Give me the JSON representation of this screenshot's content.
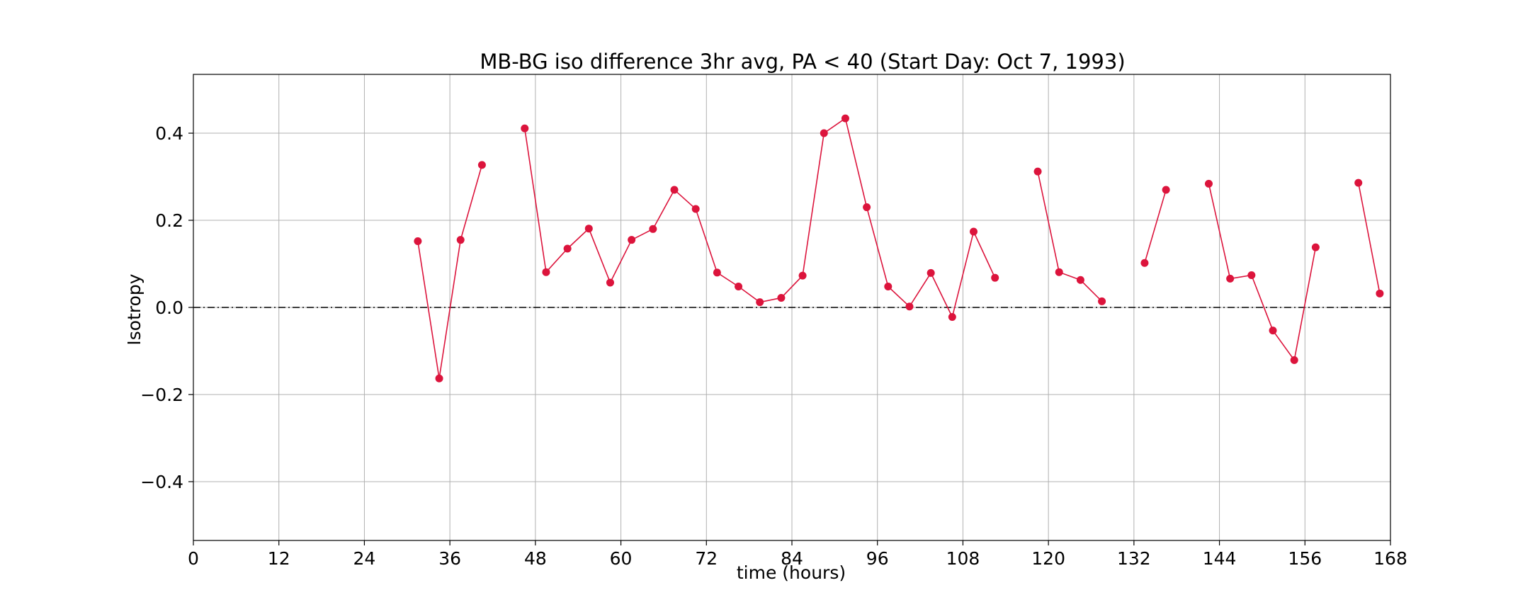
{
  "chart_data": {
    "type": "line",
    "title": "MB-BG iso difference 3hr avg, PA < 40 (Start Day: Oct 7, 1993)",
    "xlabel": "time (hours)",
    "ylabel": "Isotropy",
    "xlim": [
      0,
      168
    ],
    "ylim": [
      -0.535,
      0.535
    ],
    "x_ticks": [
      0,
      12,
      24,
      36,
      48,
      60,
      72,
      84,
      96,
      108,
      120,
      132,
      144,
      156,
      168
    ],
    "y_ticks": [
      -0.4,
      -0.2,
      0.0,
      0.2,
      0.4
    ],
    "x_tick_labels": [
      "0",
      "12",
      "24",
      "36",
      "48",
      "60",
      "72",
      "84",
      "96",
      "108",
      "120",
      "132",
      "144",
      "156",
      "168"
    ],
    "y_tick_labels": [
      "−0.4",
      "−0.2",
      "0.0",
      "0.2",
      "0.4"
    ],
    "grid": true,
    "reference_line": {
      "y": 0.0,
      "style": "dash-dot",
      "color": "#000000"
    },
    "series": [
      {
        "color": "#dc143c",
        "marker": "circle",
        "segments": [
          [
            [
              31.5,
              0.152
            ],
            [
              34.5,
              -0.163
            ],
            [
              37.5,
              0.155
            ],
            [
              40.5,
              0.327
            ]
          ],
          [
            [
              46.5,
              0.411
            ],
            [
              49.5,
              0.081
            ],
            [
              52.5,
              0.135
            ],
            [
              55.5,
              0.181
            ],
            [
              58.5,
              0.057
            ],
            [
              61.5,
              0.155
            ],
            [
              64.5,
              0.18
            ],
            [
              67.5,
              0.27
            ],
            [
              70.5,
              0.226
            ],
            [
              73.5,
              0.08
            ],
            [
              76.5,
              0.048
            ],
            [
              79.5,
              0.012
            ],
            [
              82.5,
              0.022
            ],
            [
              85.5,
              0.073
            ],
            [
              88.5,
              0.4
            ],
            [
              91.5,
              0.434
            ],
            [
              94.5,
              0.23
            ],
            [
              97.5,
              0.048
            ],
            [
              100.5,
              0.002
            ],
            [
              103.5,
              0.079
            ],
            [
              106.5,
              -0.022
            ],
            [
              109.5,
              0.174
            ],
            [
              112.5,
              0.068
            ]
          ],
          [
            [
              118.5,
              0.312
            ],
            [
              121.5,
              0.081
            ],
            [
              124.5,
              0.063
            ],
            [
              127.5,
              0.014
            ]
          ],
          [
            [
              133.5,
              0.102
            ],
            [
              136.5,
              0.27
            ]
          ],
          [
            [
              142.5,
              0.284
            ],
            [
              145.5,
              0.066
            ],
            [
              148.5,
              0.074
            ],
            [
              151.5,
              -0.053
            ],
            [
              154.5,
              -0.121
            ],
            [
              157.5,
              0.138
            ]
          ],
          [
            [
              163.5,
              0.286
            ],
            [
              166.5,
              0.032
            ]
          ]
        ]
      }
    ]
  }
}
